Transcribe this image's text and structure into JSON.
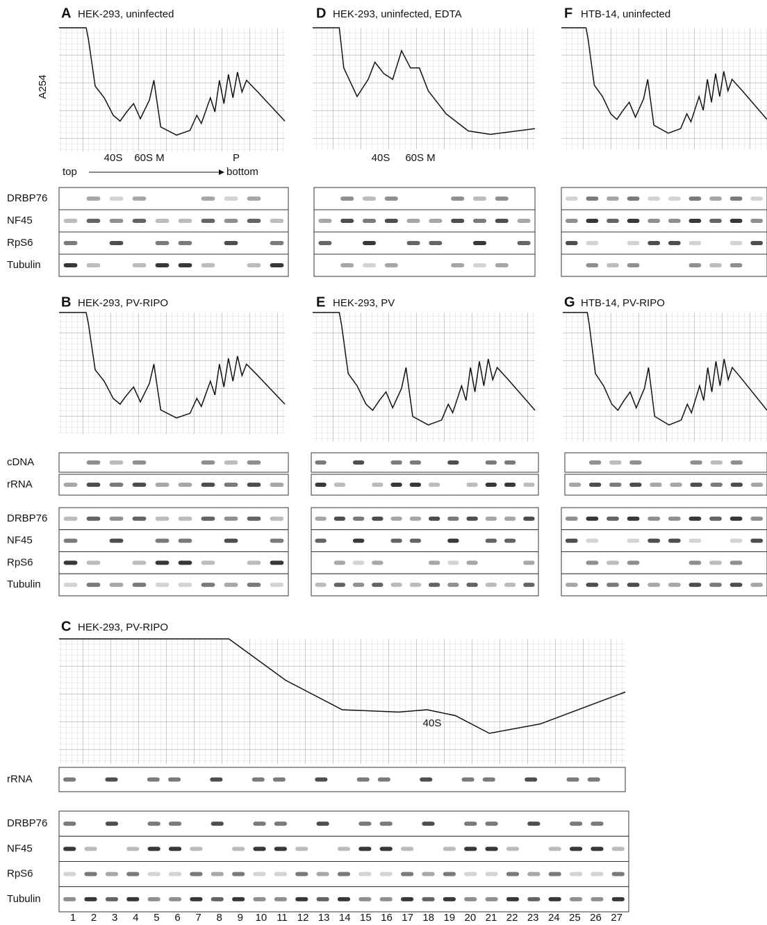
{
  "panels": [
    {
      "letter": "A",
      "title": "HEK-293, uninfected",
      "y_label": "A254",
      "peaks": [
        "40S",
        "60S M",
        "P"
      ],
      "direction": {
        "start": "top",
        "end": "bottom"
      },
      "rows": [
        "DRBP76",
        "NF45",
        "RpS6",
        "Tubulin"
      ]
    },
    {
      "letter": "D",
      "title": "HEK-293, uninfected, EDTA",
      "peaks": [
        "40S",
        "60S M"
      ]
    },
    {
      "letter": "F",
      "title": "HTB-14, uninfected"
    },
    {
      "letter": "B",
      "title": "HEK-293, PV-RIPO",
      "gel_rows": [
        "cDNA",
        "rRNA"
      ],
      "rows": [
        "DRBP76",
        "NF45",
        "RpS6",
        "Tubulin"
      ]
    },
    {
      "letter": "E",
      "title": "HEK-293, PV"
    },
    {
      "letter": "G",
      "title": "HTB-14, PV-RIPO"
    },
    {
      "letter": "C",
      "title": "HEK-293, PV-RIPO",
      "peaks": [
        "40S"
      ],
      "gel_rows": [
        "rRNA"
      ],
      "rows": [
        "DRBP76",
        "NF45",
        "RpS6",
        "Tubulin"
      ],
      "lanes": [
        "1",
        "2",
        "3",
        "4",
        "5",
        "6",
        "7",
        "8",
        "9",
        "10",
        "11",
        "12",
        "13",
        "14",
        "15",
        "16",
        "17",
        "18",
        "19",
        "20",
        "21",
        "22",
        "23",
        "24",
        "25",
        "26",
        "27"
      ]
    }
  ]
}
